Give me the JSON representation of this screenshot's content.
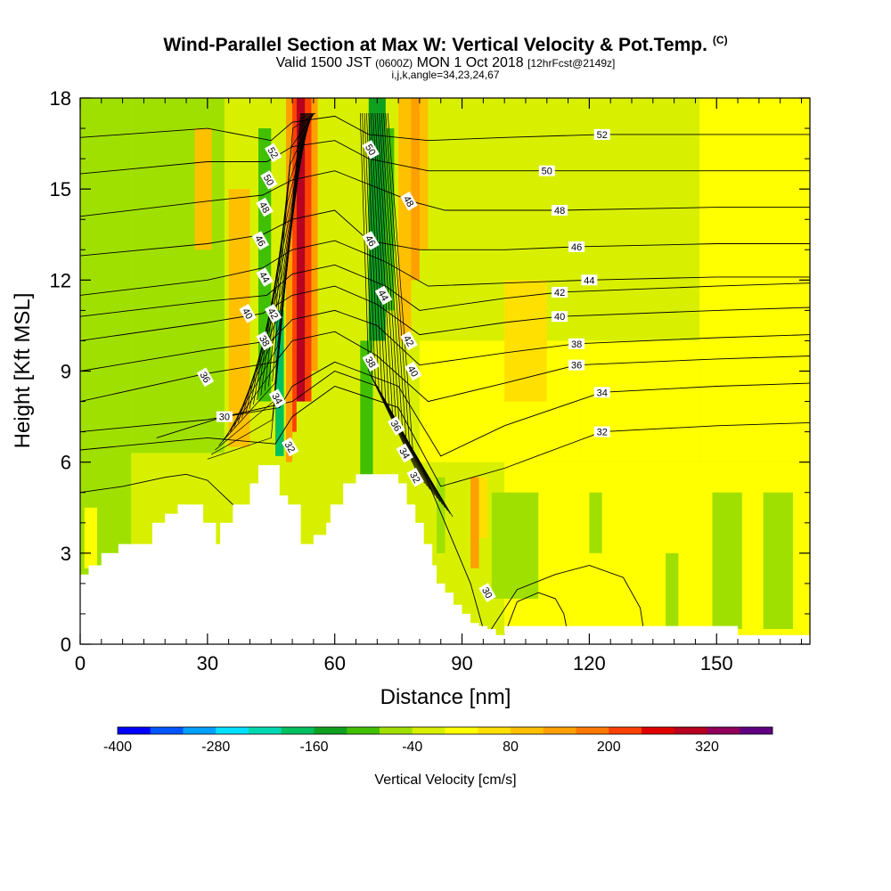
{
  "header": {
    "title": "Wind-Parallel Section at Max W: Vertical Velocity & Pot.Temp.",
    "copyright": "(C)",
    "valid_prefix": "Valid 1500 JST",
    "valid_utc": "(0600Z)",
    "valid_date": "MON 1 Oct 2018",
    "forecast": "[12hrFcst@2149z]",
    "indices": "i,j,k,angle=34,23,24,67"
  },
  "chart_data": {
    "type": "heatmap",
    "xlabel": "Distance [nm]",
    "ylabel": "Height [Kft MSL]",
    "xlim": [
      0,
      172
    ],
    "ylim": [
      0,
      18
    ],
    "x_ticks": [
      0,
      30,
      60,
      90,
      120,
      150
    ],
    "y_ticks": [
      0,
      3,
      6,
      9,
      12,
      15,
      18
    ],
    "colorbar": {
      "label": "Vertical Velocity [cm/s]",
      "range": [
        -400,
        400
      ],
      "tick_labels": [
        -400,
        -280,
        -160,
        -40,
        80,
        200,
        320
      ],
      "colors": [
        "#0000ff",
        "#0055ff",
        "#00a0ff",
        "#00e0ff",
        "#00d8b0",
        "#00c060",
        "#10a020",
        "#40c000",
        "#a0e000",
        "#d8f000",
        "#ffff00",
        "#ffe000",
        "#ffc000",
        "#ffa000",
        "#ff7800",
        "#ff4000",
        "#e00000",
        "#b80020",
        "#90005a",
        "#600080"
      ]
    },
    "terrain": {
      "x": [
        0,
        2,
        2,
        5,
        5,
        9,
        9,
        17,
        17,
        20,
        20,
        23,
        23,
        29,
        29,
        32,
        32,
        33,
        33,
        36,
        36,
        40,
        40,
        42,
        42,
        47,
        47,
        49,
        49,
        52,
        52,
        55,
        55,
        58,
        58,
        59,
        59,
        62,
        62,
        65,
        65,
        75,
        75,
        77,
        77,
        79,
        79,
        81,
        81,
        83,
        83,
        84,
        84,
        86,
        86,
        88,
        88,
        90,
        90,
        92,
        92,
        94,
        94,
        96,
        96,
        98,
        98,
        100,
        100,
        143,
        143,
        155,
        155,
        172,
        172,
        0
      ],
      "y": [
        2.3,
        2.3,
        2.6,
        2.6,
        3.0,
        3.0,
        3.3,
        3.3,
        4.0,
        4.0,
        4.3,
        4.3,
        4.6,
        4.6,
        4.0,
        4.0,
        3.3,
        3.3,
        4.0,
        4.0,
        4.6,
        4.6,
        5.3,
        5.3,
        5.9,
        5.9,
        4.9,
        4.9,
        4.6,
        4.6,
        3.3,
        3.3,
        3.6,
        3.6,
        4.0,
        4.0,
        4.6,
        4.6,
        5.3,
        5.3,
        5.6,
        5.6,
        5.3,
        5.3,
        4.6,
        4.6,
        4.0,
        4.0,
        3.3,
        3.3,
        2.6,
        2.6,
        2.0,
        2.0,
        1.7,
        1.7,
        1.3,
        1.3,
        1.0,
        1.0,
        0.7,
        0.7,
        0.6,
        0.6,
        0.5,
        0.5,
        0.3,
        0.3,
        0.6,
        0.6,
        0.6,
        0.6,
        0.3,
        0.3,
        0,
        0
      ]
    },
    "bands": [
      {
        "name": "base",
        "value": -30,
        "x": [
          0,
          172
        ],
        "y": [
          0,
          18
        ]
      },
      {
        "value": -60,
        "x": [
          0,
          12
        ],
        "y": [
          0,
          18
        ]
      },
      {
        "value": -60,
        "x": [
          12,
          34
        ],
        "y": [
          6.3,
          18
        ]
      },
      {
        "value": 20,
        "x": [
          1,
          4
        ],
        "y": [
          2.5,
          4.5
        ]
      },
      {
        "value": 20,
        "x": [
          100,
          172
        ],
        "y": [
          0,
          6
        ]
      },
      {
        "value": 20,
        "x": [
          118,
          146
        ],
        "y": [
          6,
          10
        ]
      },
      {
        "value": 20,
        "x": [
          146,
          172
        ],
        "y": [
          6,
          18
        ]
      },
      {
        "value": 20,
        "x": [
          80,
          118
        ],
        "y": [
          6,
          10
        ]
      },
      {
        "value": -60,
        "x": [
          97,
          108
        ],
        "y": [
          1.5,
          5
        ]
      },
      {
        "value": -60,
        "x": [
          149,
          156
        ],
        "y": [
          0.5,
          5
        ]
      },
      {
        "value": -60,
        "x": [
          161,
          168
        ],
        "y": [
          0.5,
          5
        ]
      },
      {
        "value": -60,
        "x": [
          138,
          141
        ],
        "y": [
          0.5,
          3
        ]
      },
      {
        "value": -60,
        "x": [
          120,
          123
        ],
        "y": [
          3,
          5
        ]
      },
      {
        "value": 80,
        "x": [
          35,
          40
        ],
        "y": [
          6.5,
          15
        ]
      },
      {
        "value": 80,
        "x": [
          27,
          31
        ],
        "y": [
          13,
          17
        ]
      },
      {
        "value": 60,
        "x": [
          92,
          96
        ],
        "y": [
          3.5,
          5.5
        ]
      },
      {
        "value": 60,
        "x": [
          100,
          110
        ],
        "y": [
          8,
          12
        ]
      },
      {
        "value": -120,
        "x": [
          42,
          45
        ],
        "y": [
          8,
          17
        ]
      },
      {
        "value": -180,
        "x": [
          46,
          48
        ],
        "y": [
          6.2,
          11
        ]
      },
      {
        "value": -100,
        "x": [
          47,
          48
        ],
        "y": [
          3.5,
          4.6
        ]
      },
      {
        "value": 120,
        "x": [
          48.5,
          50
        ],
        "y": [
          6,
          18
        ]
      },
      {
        "value": 220,
        "x": [
          50,
          51
        ],
        "y": [
          7,
          18
        ]
      },
      {
        "value": 300,
        "x": [
          51,
          53
        ],
        "y": [
          8,
          18
        ]
      },
      {
        "value": 220,
        "x": [
          53,
          54.5
        ],
        "y": [
          8,
          18
        ]
      },
      {
        "value": 120,
        "x": [
          54.5,
          56
        ],
        "y": [
          9,
          18
        ]
      },
      {
        "value": -120,
        "x": [
          66,
          69
        ],
        "y": [
          5.5,
          10
        ]
      },
      {
        "value": -140,
        "x": [
          68,
          72
        ],
        "y": [
          10,
          18
        ]
      },
      {
        "value": -100,
        "x": [
          72,
          74
        ],
        "y": [
          11,
          17
        ]
      },
      {
        "value": -80,
        "x": [
          84,
          86
        ],
        "y": [
          3,
          5.5
        ]
      },
      {
        "value": 80,
        "x": [
          75,
          78
        ],
        "y": [
          10,
          18
        ]
      },
      {
        "value": 140,
        "x": [
          78,
          80
        ],
        "y": [
          12,
          18
        ]
      },
      {
        "value": 80,
        "x": [
          80,
          82
        ],
        "y": [
          13,
          18
        ]
      },
      {
        "value": 120,
        "x": [
          92,
          94
        ],
        "y": [
          2.5,
          5.5
        ]
      }
    ],
    "contours": [
      {
        "label": "30",
        "label_x": 34,
        "label_y": 7.5,
        "x": [
          18,
          34,
          50,
          60,
          70,
          80,
          92,
          95
        ],
        "y": [
          6.8,
          7.5,
          8.0,
          9.0,
          8.5,
          6.0,
          2.0,
          0.5
        ]
      },
      {
        "label": "32",
        "label_x": 123,
        "label_y": 7.0,
        "x": [
          0,
          30,
          46,
          50,
          60,
          75,
          85,
          100,
          123,
          150,
          172
        ],
        "y": [
          6.4,
          6.8,
          6.6,
          7.5,
          8.5,
          7.8,
          5.2,
          5.8,
          7.0,
          7.2,
          7.3
        ]
      },
      {
        "label": "34",
        "label_x": 123,
        "label_y": 8.3,
        "x": [
          0,
          30,
          47,
          50,
          60,
          75,
          85,
          100,
          123,
          150,
          172
        ],
        "y": [
          7.0,
          7.4,
          7.8,
          8.5,
          9.3,
          8.5,
          6.2,
          7.2,
          8.3,
          8.5,
          8.6
        ]
      },
      {
        "label": "36",
        "label_x": 117,
        "label_y": 9.2,
        "x": [
          0,
          29,
          46,
          50,
          60,
          70,
          82,
          100,
          117,
          150,
          172
        ],
        "y": [
          8.0,
          8.9,
          9.3,
          10.0,
          10.3,
          9.5,
          8.0,
          8.6,
          9.2,
          9.4,
          9.5
        ]
      },
      {
        "label": "38",
        "label_x": 117,
        "label_y": 9.9,
        "x": [
          0,
          30,
          45,
          50,
          60,
          70,
          80,
          100,
          117,
          150,
          172
        ],
        "y": [
          9.0,
          9.7,
          10.0,
          10.7,
          11.0,
          10.5,
          9.2,
          9.6,
          9.9,
          10.1,
          10.2
        ]
      },
      {
        "label": "40",
        "label_x": 113,
        "label_y": 10.8,
        "x": [
          0,
          30,
          43,
          50,
          60,
          70,
          80,
          100,
          113,
          150,
          172
        ],
        "y": [
          10.0,
          10.6,
          10.9,
          11.5,
          11.8,
          11.2,
          10.2,
          10.6,
          10.8,
          11.0,
          11.1
        ]
      },
      {
        "label": "42",
        "label_x": 113,
        "label_y": 11.6,
        "x": [
          0,
          30,
          44,
          50,
          60,
          72,
          80,
          100,
          113,
          150,
          172
        ],
        "y": [
          10.8,
          11.3,
          11.5,
          12.2,
          12.5,
          11.8,
          11.0,
          11.4,
          11.6,
          11.8,
          11.9
        ]
      },
      {
        "label": "44",
        "label_x": 120,
        "label_y": 12.0,
        "x": [
          0,
          30,
          43,
          50,
          60,
          72,
          82,
          100,
          120,
          150,
          172
        ],
        "y": [
          11.5,
          12.0,
          12.4,
          13.0,
          13.3,
          12.6,
          11.8,
          11.9,
          12.0,
          12.1,
          12.1
        ]
      },
      {
        "label": "46",
        "label_x": 117,
        "label_y": 13.1,
        "x": [
          0,
          30,
          43,
          50,
          60,
          68,
          80,
          100,
          117,
          150,
          172
        ],
        "y": [
          12.8,
          13.2,
          13.5,
          14.0,
          14.3,
          13.3,
          13.0,
          13.0,
          13.1,
          13.2,
          13.2
        ]
      },
      {
        "label": "48",
        "label_x": 113,
        "label_y": 14.3,
        "x": [
          0,
          30,
          43,
          50,
          60,
          78,
          86,
          100,
          113,
          150,
          172
        ],
        "y": [
          14.1,
          14.6,
          14.8,
          15.3,
          15.6,
          14.6,
          14.3,
          14.3,
          14.3,
          14.4,
          14.4
        ]
      },
      {
        "label": "50",
        "label_x": 110,
        "label_y": 15.6,
        "x": [
          0,
          30,
          44,
          50,
          60,
          68,
          82,
          100,
          110,
          150,
          172
        ],
        "y": [
          15.5,
          15.9,
          15.9,
          16.4,
          16.6,
          16.0,
          15.6,
          15.6,
          15.6,
          15.6,
          15.6
        ]
      },
      {
        "label": "52",
        "label_x": 123,
        "label_y": 16.8,
        "x": [
          0,
          30,
          45,
          50,
          60,
          68,
          82,
          100,
          123,
          150,
          172
        ],
        "y": [
          16.7,
          17.0,
          16.6,
          17.2,
          17.4,
          16.8,
          16.6,
          16.7,
          16.8,
          16.8,
          16.8
        ]
      },
      {
        "label": "",
        "label_x": 0,
        "label_y": 0,
        "x": [
          0,
          10,
          20,
          25,
          30,
          36,
          38
        ],
        "y": [
          5.0,
          5.2,
          5.5,
          5.6,
          5.4,
          4.6,
          4.0
        ]
      },
      {
        "label": "",
        "label_x": 0,
        "label_y": 0,
        "x": [
          100,
          103,
          108,
          112,
          114,
          115
        ],
        "y": [
          0.3,
          1.4,
          1.7,
          1.5,
          1.0,
          0.3
        ]
      },
      {
        "label": "",
        "label_x": 0,
        "label_y": 0,
        "x": [
          96,
          103,
          112,
          120,
          128,
          132,
          133
        ],
        "y": [
          0.3,
          1.8,
          2.3,
          2.6,
          2.2,
          1.2,
          0.3
        ]
      }
    ],
    "slanted_labels": [
      {
        "label": "52",
        "x": 45.5,
        "y": 16.2
      },
      {
        "label": "50",
        "x": 44.5,
        "y": 15.3
      },
      {
        "label": "48",
        "x": 43.5,
        "y": 14.4
      },
      {
        "label": "46",
        "x": 42.5,
        "y": 13.3
      },
      {
        "label": "44",
        "x": 43.5,
        "y": 12.1
      },
      {
        "label": "42",
        "x": 45.5,
        "y": 10.9
      },
      {
        "label": "40",
        "x": 39.5,
        "y": 10.9
      },
      {
        "label": "38",
        "x": 43.5,
        "y": 10.0
      },
      {
        "label": "36",
        "x": 29.5,
        "y": 8.8
      },
      {
        "label": "34",
        "x": 46.5,
        "y": 8.1
      },
      {
        "label": "32",
        "x": 49.5,
        "y": 6.5
      },
      {
        "label": "50",
        "x": 68.5,
        "y": 16.3
      },
      {
        "label": "48",
        "x": 77.5,
        "y": 14.6
      },
      {
        "label": "46",
        "x": 68.5,
        "y": 13.3
      },
      {
        "label": "44",
        "x": 71.5,
        "y": 11.5
      },
      {
        "label": "42",
        "x": 77.5,
        "y": 10.0
      },
      {
        "label": "40",
        "x": 78.5,
        "y": 9.0
      },
      {
        "label": "38",
        "x": 68.5,
        "y": 9.3
      },
      {
        "label": "36",
        "x": 74.5,
        "y": 7.2
      },
      {
        "label": "34",
        "x": 76.5,
        "y": 6.3
      },
      {
        "label": "32",
        "x": 79.0,
        "y": 5.5
      },
      {
        "label": "30",
        "x": 96.0,
        "y": 1.7
      }
    ]
  }
}
